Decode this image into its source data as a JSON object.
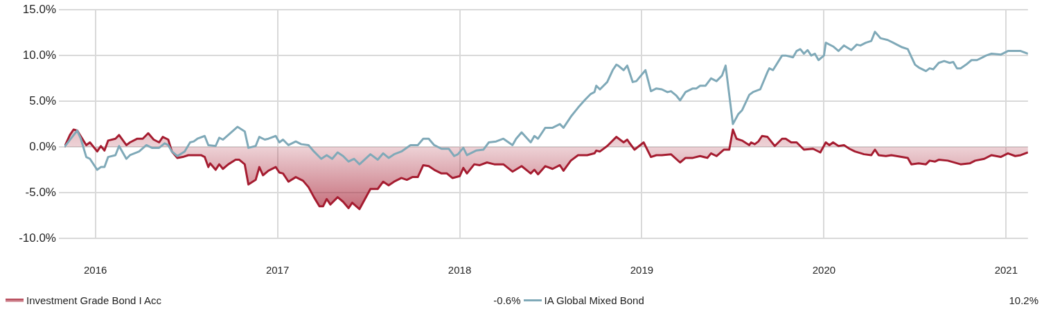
{
  "chart_data": {
    "type": "line",
    "legend": "bottom",
    "grid": true,
    "marker": "none",
    "line_style": "solid",
    "xlim": [
      2015.83,
      2021.12
    ],
    "xticks": [
      2016,
      2017,
      2018,
      2019,
      2020,
      2021
    ],
    "ylim": [
      -10,
      15
    ],
    "yticks": [
      {
        "value": -10,
        "label": "-10.0%"
      },
      {
        "value": -5,
        "label": "-5.0%"
      },
      {
        "value": 0,
        "label": "0.0%"
      },
      {
        "value": 5,
        "label": "5.0%"
      },
      {
        "value": 10,
        "label": "10.0%"
      },
      {
        "value": 15,
        "label": "15.0%"
      }
    ],
    "annotations": [
      "-0.6%",
      "10.2%"
    ],
    "series": [
      {
        "name": "Investment Grade Bond I Acc",
        "type": "area",
        "color": "#a51c30",
        "x": [
          2015.83,
          2015.86,
          2015.88,
          2015.9,
          2015.95,
          2015.97,
          2016.01,
          2016.03,
          2016.05,
          2016.07,
          2016.11,
          2016.13,
          2016.17,
          2016.19,
          2016.23,
          2016.26,
          2016.29,
          2016.32,
          2016.35,
          2016.37,
          2016.4,
          2016.42,
          2016.45,
          2016.48,
          2016.51,
          2016.58,
          2016.6,
          2016.62,
          2016.63,
          2016.66,
          2016.68,
          2016.7,
          2016.73,
          2016.77,
          2016.79,
          2016.82,
          2016.84,
          2016.88,
          2016.9,
          2016.92,
          2016.95,
          2016.99,
          2017.01,
          2017.03,
          2017.06,
          2017.1,
          2017.14,
          2017.17,
          2017.2,
          2017.23,
          2017.25,
          2017.27,
          2017.29,
          2017.33,
          2017.36,
          2017.39,
          2017.41,
          2017.45,
          2017.51,
          2017.55,
          2017.58,
          2017.61,
          2017.64,
          2017.68,
          2017.71,
          2017.74,
          2017.77,
          2017.8,
          2017.83,
          2017.86,
          2017.9,
          2017.93,
          2017.96,
          2018.0,
          2018.02,
          2018.04,
          2018.08,
          2018.11,
          2018.15,
          2018.19,
          2018.24,
          2018.29,
          2018.34,
          2018.39,
          2018.41,
          2018.43,
          2018.47,
          2018.51,
          2018.55,
          2018.57,
          2018.61,
          2018.65,
          2018.7,
          2018.74,
          2018.75,
          2018.77,
          2018.81,
          2018.86,
          2018.9,
          2018.92,
          2018.93,
          2018.96,
          2019.01,
          2019.05,
          2019.08,
          2019.11,
          2019.16,
          2019.21,
          2019.24,
          2019.28,
          2019.32,
          2019.36,
          2019.38,
          2019.41,
          2019.45,
          2019.48,
          2019.5,
          2019.52,
          2019.55,
          2019.59,
          2019.6,
          2019.62,
          2019.64,
          2019.66,
          2019.69,
          2019.73,
          2019.77,
          2019.79,
          2019.82,
          2019.85,
          2019.89,
          2019.94,
          2019.98,
          2020.01,
          2020.03,
          2020.05,
          2020.08,
          2020.11,
          2020.14,
          2020.17,
          2020.22,
          2020.26,
          2020.28,
          2020.3,
          2020.34,
          2020.37,
          2020.46,
          2020.48,
          2020.52,
          2020.56,
          2020.58,
          2020.61,
          2020.63,
          2020.68,
          2020.75,
          2020.8,
          2020.83,
          2020.88,
          2020.92,
          2020.97,
          2021.01,
          2021.05,
          2021.08,
          2021.12
        ],
        "values": [
          0,
          1.3,
          1.9,
          1.8,
          0.2,
          0.5,
          -0.5,
          0.1,
          -0.4,
          0.7,
          0.9,
          1.3,
          0.2,
          0.5,
          0.9,
          0.9,
          1.5,
          0.8,
          0.5,
          1.1,
          0.8,
          -0.5,
          -1.2,
          -1.1,
          -0.9,
          -0.9,
          -1.1,
          -2.2,
          -1.8,
          -2.5,
          -1.9,
          -2.4,
          -1.9,
          -1.4,
          -1.4,
          -1.9,
          -4.1,
          -3.6,
          -2.2,
          -3.1,
          -2.6,
          -2.2,
          -2.8,
          -2.9,
          -3.8,
          -3.3,
          -3.7,
          -4.4,
          -5.5,
          -6.5,
          -6.5,
          -5.7,
          -6.3,
          -5.5,
          -6.0,
          -6.7,
          -6.1,
          -6.8,
          -4.6,
          -4.6,
          -3.8,
          -4.2,
          -3.8,
          -3.4,
          -3.6,
          -3.3,
          -3.3,
          -2.0,
          -2.1,
          -2.5,
          -2.9,
          -2.9,
          -3.4,
          -3.2,
          -2.3,
          -2.9,
          -1.9,
          -2.0,
          -1.7,
          -1.9,
          -1.9,
          -2.7,
          -2.1,
          -2.9,
          -2.5,
          -3.0,
          -2.1,
          -2.4,
          -2.0,
          -2.6,
          -1.5,
          -0.9,
          -0.9,
          -0.7,
          -0.4,
          -0.5,
          0.1,
          1.1,
          0.5,
          0.8,
          0.5,
          -0.3,
          0.5,
          -1.1,
          -0.9,
          -0.9,
          -0.8,
          -1.7,
          -1.2,
          -1.2,
          -1.0,
          -1.2,
          -0.7,
          -1.0,
          -0.3,
          -0.3,
          1.9,
          0.9,
          0.7,
          0.2,
          0.5,
          0.3,
          0.6,
          1.2,
          1.1,
          0.1,
          0.9,
          0.9,
          0.5,
          0.5,
          -0.3,
          -0.2,
          -0.6,
          0.5,
          0.2,
          0.5,
          0.1,
          0.2,
          -0.2,
          -0.5,
          -0.8,
          -0.9,
          -0.3,
          -0.9,
          -1.0,
          -0.9,
          -1.2,
          -1.9,
          -1.8,
          -1.9,
          -1.5,
          -1.6,
          -1.4,
          -1.5,
          -1.9,
          -1.8,
          -1.5,
          -1.3,
          -0.9,
          -1.1,
          -0.7,
          -1.0,
          -0.9,
          -0.6
        ]
      },
      {
        "name": "IA Global Mixed Bond",
        "type": "line",
        "color": "#7fa9b8",
        "x": [
          2015.83,
          2015.9,
          2015.92,
          2015.95,
          2015.97,
          2016.01,
          2016.03,
          2016.05,
          2016.07,
          2016.11,
          2016.13,
          2016.17,
          2016.19,
          2016.24,
          2016.28,
          2016.31,
          2016.35,
          2016.38,
          2016.4,
          2016.42,
          2016.45,
          2016.49,
          2016.52,
          2016.54,
          2016.56,
          2016.6,
          2016.62,
          2016.66,
          2016.68,
          2016.7,
          2016.78,
          2016.82,
          2016.84,
          2016.88,
          2016.9,
          2016.93,
          2016.95,
          2016.99,
          2017.01,
          2017.03,
          2017.06,
          2017.1,
          2017.13,
          2017.17,
          2017.2,
          2017.24,
          2017.27,
          2017.3,
          2017.33,
          2017.36,
          2017.39,
          2017.42,
          2017.45,
          2017.51,
          2017.55,
          2017.58,
          2017.61,
          2017.64,
          2017.68,
          2017.73,
          2017.77,
          2017.8,
          2017.83,
          2017.86,
          2017.9,
          2017.94,
          2017.97,
          2017.99,
          2018.02,
          2018.04,
          2018.09,
          2018.13,
          2018.16,
          2018.2,
          2018.24,
          2018.29,
          2018.31,
          2018.34,
          2018.39,
          2018.41,
          2018.43,
          2018.47,
          2018.51,
          2018.55,
          2018.57,
          2018.61,
          2018.65,
          2018.69,
          2018.72,
          2018.74,
          2018.75,
          2018.77,
          2018.81,
          2018.84,
          2018.86,
          2018.87,
          2018.9,
          2018.92,
          2018.93,
          2018.95,
          2018.97,
          2019.02,
          2019.05,
          2019.08,
          2019.11,
          2019.14,
          2019.16,
          2019.19,
          2019.21,
          2019.24,
          2019.28,
          2019.3,
          2019.32,
          2019.35,
          2019.38,
          2019.41,
          2019.44,
          2019.46,
          2019.5,
          2019.53,
          2019.55,
          2019.59,
          2019.61,
          2019.65,
          2019.69,
          2019.7,
          2019.72,
          2019.77,
          2019.79,
          2019.83,
          2019.85,
          2019.87,
          2019.89,
          2019.91,
          2019.93,
          2019.95,
          2019.97,
          2020.0,
          2020.01,
          2020.05,
          2020.08,
          2020.11,
          2020.15,
          2020.18,
          2020.2,
          2020.23,
          2020.26,
          2020.28,
          2020.31,
          2020.35,
          2020.38,
          2020.4,
          2020.43,
          2020.46,
          2020.5,
          2020.52,
          2020.56,
          2020.58,
          2020.6,
          2020.63,
          2020.66,
          2020.69,
          2020.71,
          2020.73,
          2020.75,
          2020.78,
          2020.81,
          2020.84,
          2020.87,
          2020.89,
          2020.92,
          2020.97,
          2021.01,
          2021.05,
          2021.08,
          2021.12
        ],
        "values": [
          0,
          1.8,
          0.9,
          -1.1,
          -1.3,
          -2.5,
          -2.2,
          -2.2,
          -1.1,
          -0.9,
          0.1,
          -1.3,
          -0.9,
          -0.5,
          0.2,
          -0.1,
          -0.1,
          0.4,
          0.2,
          -0.5,
          -1.0,
          -0.5,
          0.5,
          0.6,
          0.9,
          1.2,
          0.2,
          0.1,
          1.0,
          0.8,
          2.2,
          1.7,
          -0.1,
          0.1,
          1.1,
          0.8,
          0.9,
          1.2,
          0.5,
          0.8,
          0.2,
          0.6,
          0.3,
          0.2,
          -0.5,
          -1.3,
          -0.9,
          -1.3,
          -0.6,
          -1.0,
          -1.6,
          -1.3,
          -1.9,
          -0.8,
          -1.4,
          -0.7,
          -1.2,
          -0.8,
          -0.5,
          0.2,
          0.2,
          0.9,
          0.9,
          0.2,
          -0.2,
          -0.2,
          -1.0,
          -0.8,
          -0.1,
          -0.9,
          -0.4,
          -0.3,
          0.5,
          0.6,
          0.9,
          0.2,
          0.9,
          1.6,
          0.5,
          1.2,
          0.9,
          2.1,
          2.1,
          2.5,
          2.1,
          3.3,
          4.3,
          5.2,
          5.8,
          6.0,
          6.7,
          6.3,
          7.1,
          8.4,
          9.0,
          8.9,
          8.4,
          8.9,
          8.3,
          7.1,
          7.2,
          8.4,
          6.1,
          6.4,
          6.3,
          6.0,
          6.1,
          5.6,
          5.1,
          6.0,
          6.4,
          6.4,
          6.7,
          6.7,
          7.5,
          7.2,
          7.8,
          8.9,
          2.5,
          3.6,
          4.0,
          5.7,
          6.0,
          6.3,
          8.2,
          8.6,
          8.4,
          10.0,
          10.0,
          9.8,
          10.5,
          10.7,
          10.2,
          10.6,
          10.0,
          10.2,
          9.5,
          10.0,
          11.4,
          11.0,
          10.5,
          11.1,
          10.6,
          11.2,
          11.1,
          11.4,
          11.6,
          12.6,
          11.9,
          11.7,
          11.4,
          11.2,
          10.9,
          10.7,
          9.0,
          8.7,
          8.3,
          8.6,
          8.5,
          9.2,
          9.4,
          9.2,
          9.3,
          8.6,
          8.6,
          9.0,
          9.5,
          9.5,
          9.8,
          10.0,
          10.2,
          10.1,
          10.5,
          10.5,
          10.5,
          10.2
        ]
      }
    ]
  }
}
